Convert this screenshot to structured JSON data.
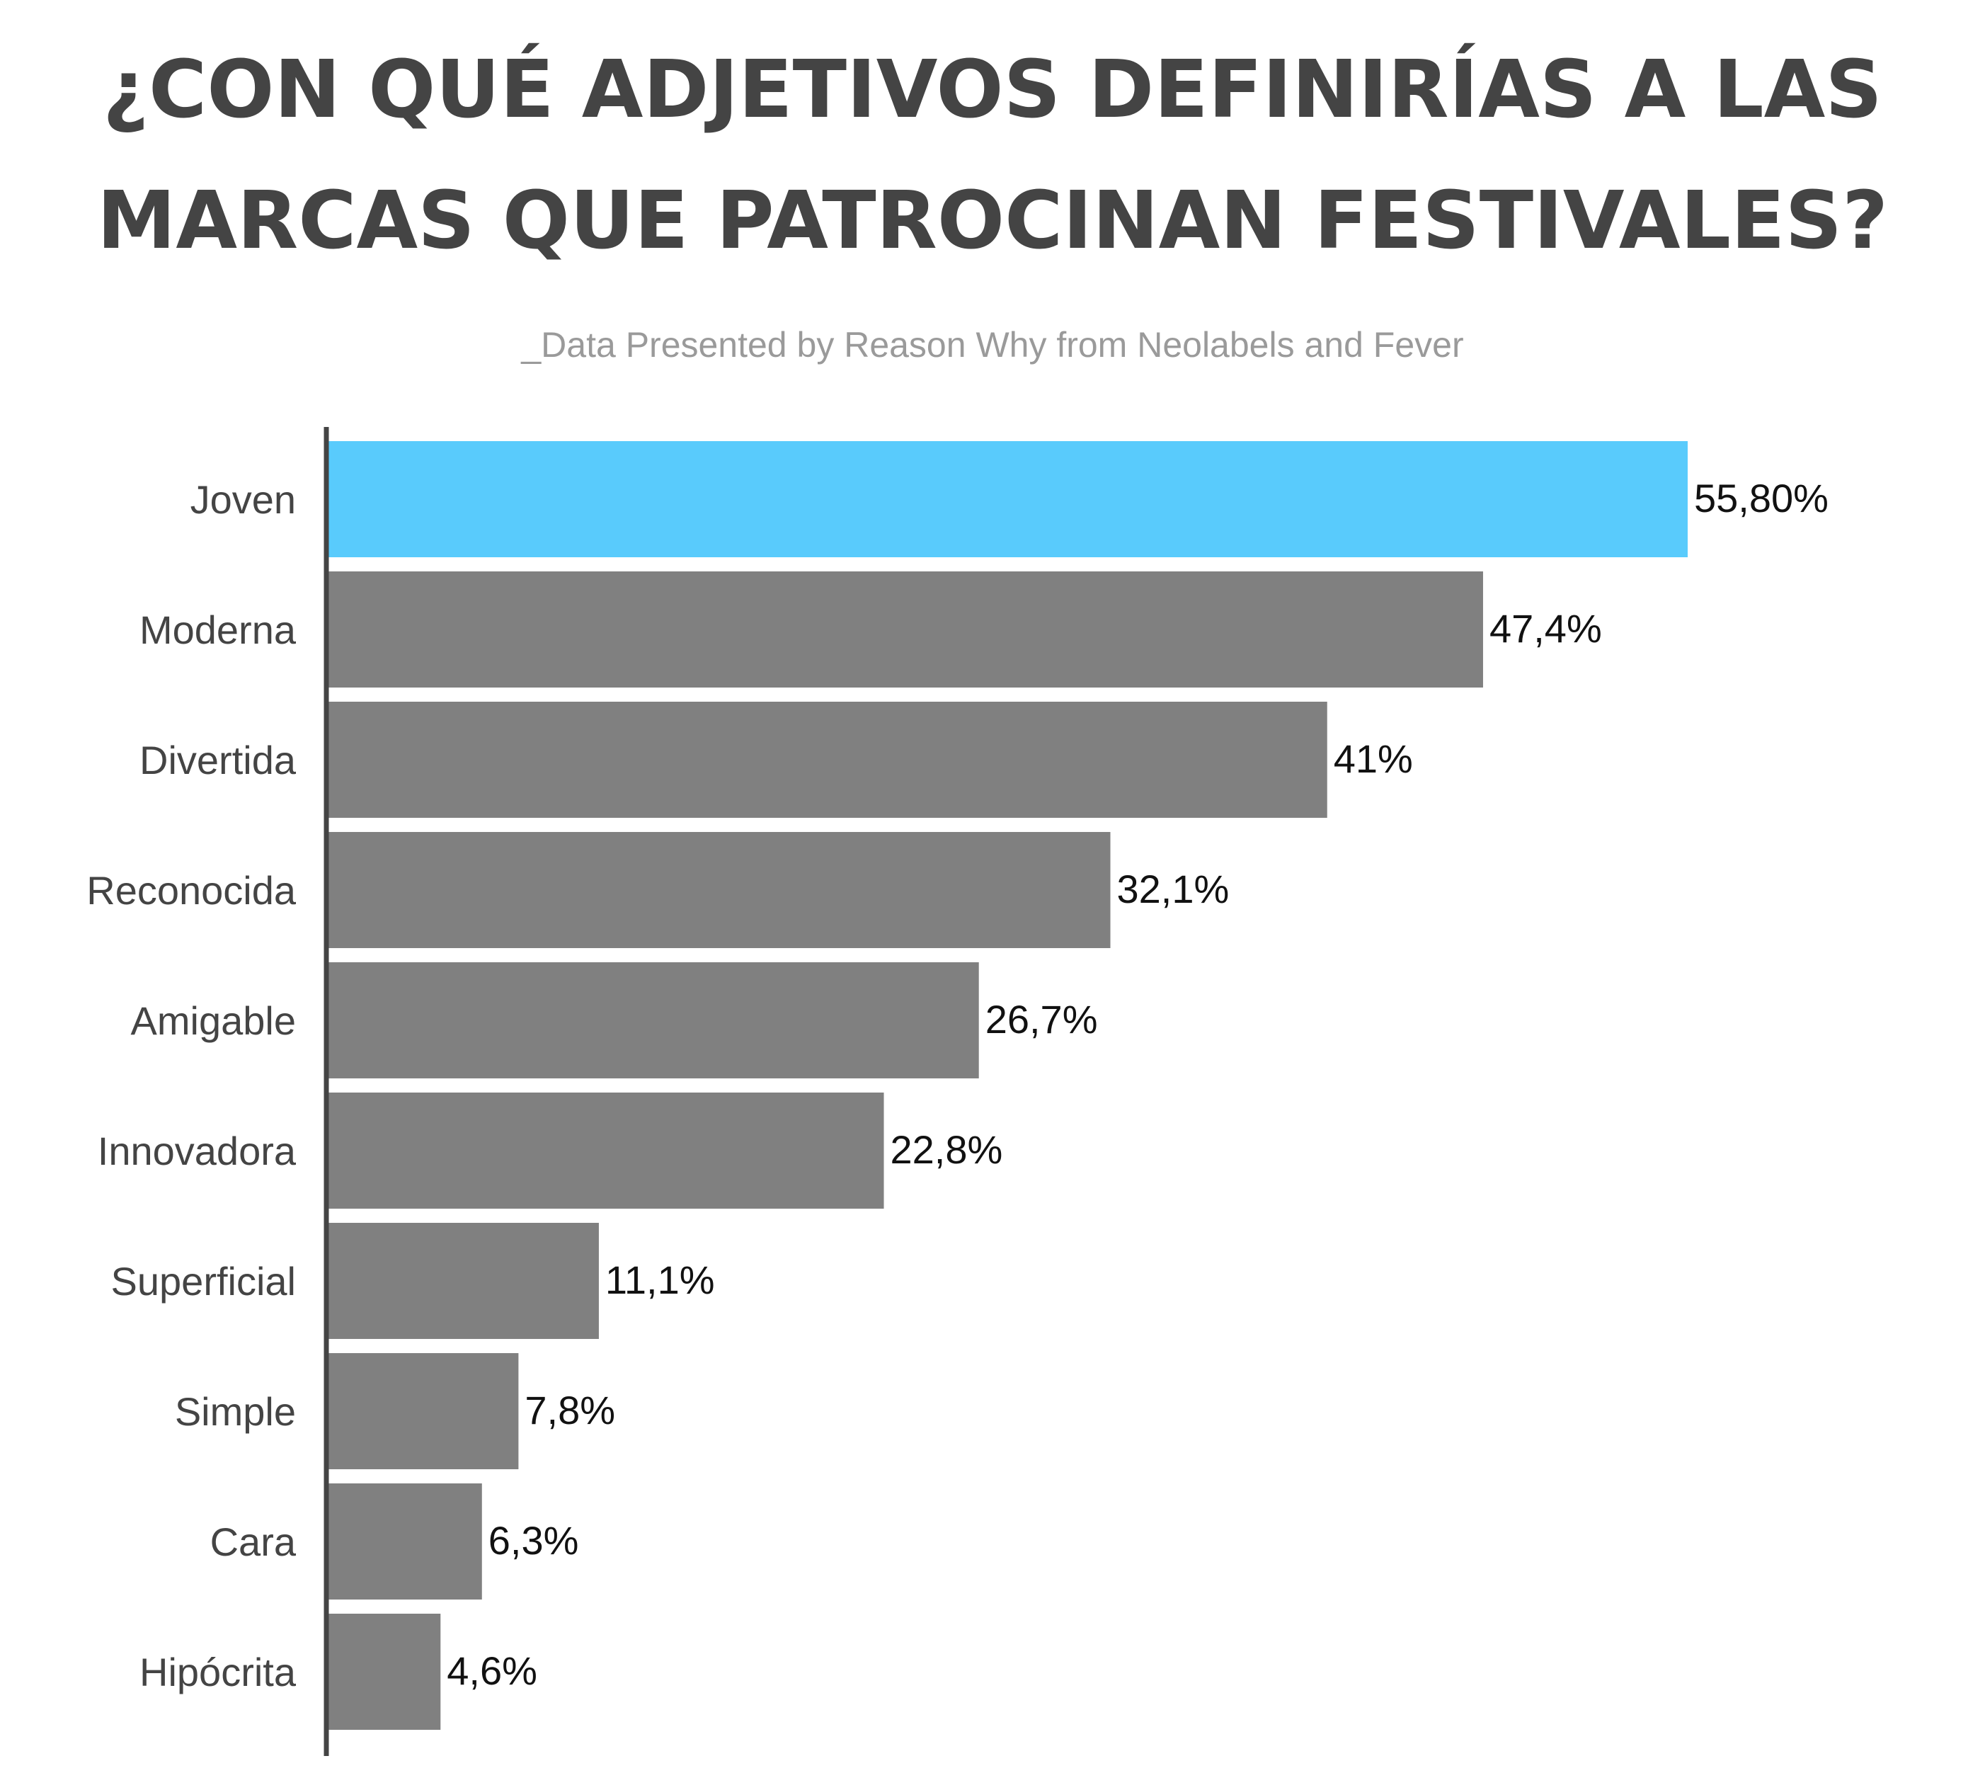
{
  "chart_data": {
    "type": "bar",
    "orientation": "horizontal",
    "title_lines": [
      "¿CON QUÉ ADJETIVOS DEFINIRÍAS A LAS",
      "MARCAS QUE PATROCINAN FESTIVALES?"
    ],
    "subtitle": "_Data Presented by Reason Why from Neolabels and Fever",
    "categories": [
      "Joven",
      "Moderna",
      "Divertida",
      "Reconocida",
      "Amigable",
      "Innovadora",
      "Superficial",
      "Simple",
      "Cara",
      "Hipócrita"
    ],
    "values": [
      55.8,
      47.4,
      41,
      32.1,
      26.7,
      22.8,
      11.1,
      7.8,
      6.3,
      4.6
    ],
    "value_labels": [
      "55,80%",
      "47,4%",
      "41%",
      "32,1%",
      "26,7%",
      "22,8%",
      "11,1%",
      "7,8%",
      "6,3%",
      "4,6%"
    ],
    "xlim": [
      0,
      55.8
    ],
    "grid": false,
    "colors": {
      "highlight": "#59cbfc",
      "bar": "#808080",
      "axis": "#444444",
      "title": "#444444",
      "subtitle": "#9a9a9a"
    },
    "highlight_index": 0
  }
}
